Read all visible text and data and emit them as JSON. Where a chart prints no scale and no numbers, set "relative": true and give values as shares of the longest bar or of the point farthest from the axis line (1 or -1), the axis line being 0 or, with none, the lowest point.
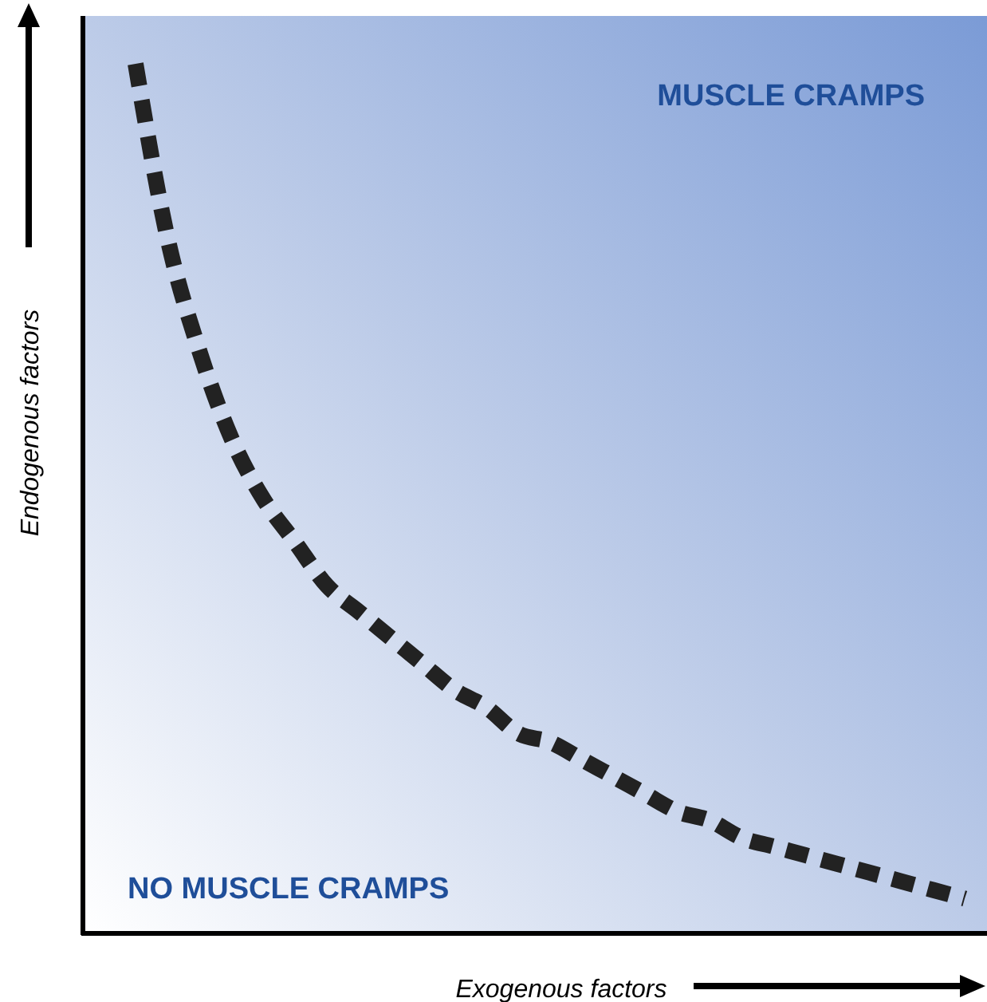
{
  "chart_data": {
    "type": "line",
    "relative": true,
    "xlabel": "Exogenous factors",
    "ylabel": "Endogenous factors",
    "annotations": [
      "MUSCLE CRAMPS",
      "NO MUSCLE CRAMPS"
    ],
    "categories": [
      null,
      null,
      null,
      null,
      null,
      null,
      null,
      null,
      null,
      null,
      null,
      null,
      null,
      null,
      null,
      null,
      null,
      null,
      null,
      null,
      null,
      null,
      null,
      null,
      null,
      null,
      null
    ],
    "series": [
      {
        "color": "#222222",
        "values": [
          1,
          0.8,
          0.67,
          0.57,
          0.5,
          0.45,
          0.4,
          0.37,
          0.34,
          0.31,
          0.28,
          0.26,
          0.23,
          0.22,
          0.2,
          0.18,
          0.16,
          0.14,
          0.13,
          0.11,
          0.1,
          0.09,
          0.08,
          0.07,
          0.06,
          0.05,
          0.04
        ]
      }
    ],
    "line_style": "dashed",
    "marker": "none"
  }
}
